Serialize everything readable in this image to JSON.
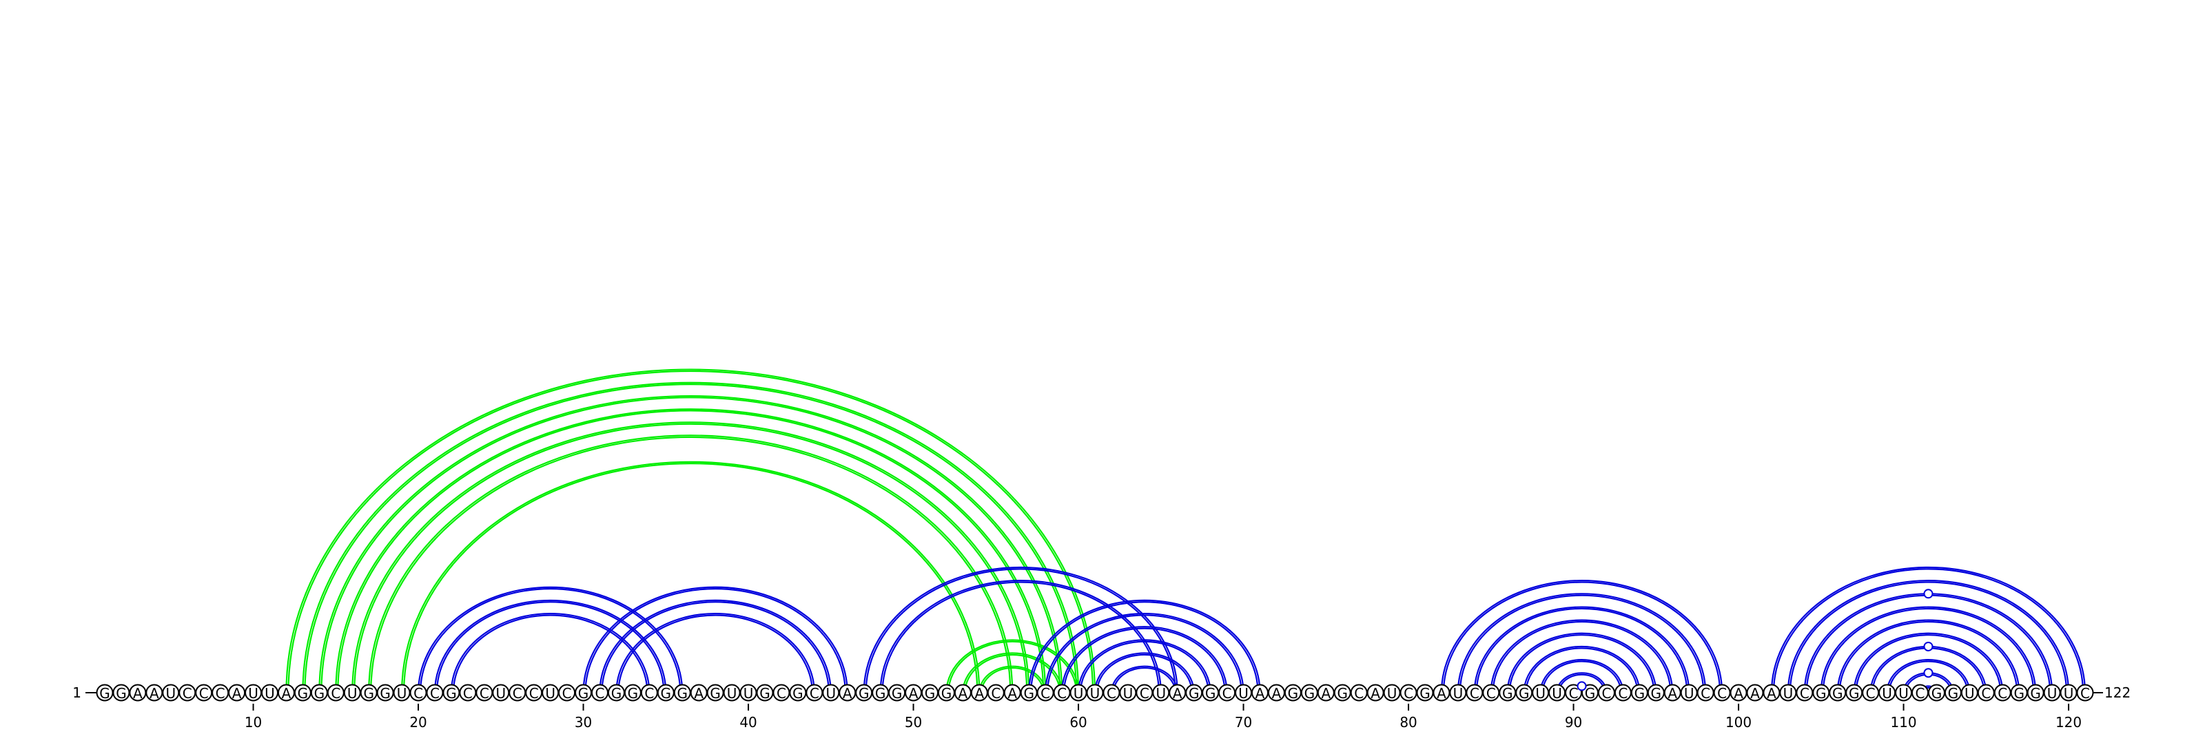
{
  "sequence": "GGAAUCCCAUUAGGCUGGUCCGCCUCCUCGCGGCGGAGUUGCGCUAGGGAGGAACAGCCUUCUCUAGGCUAAGGAGCAUCGAUCCGGUUCGCCGGAUCCAAAUCGGGCUUCGGUCCGGUUC",
  "start_label": "1",
  "end_label": "122",
  "ticks": [
    10,
    20,
    30,
    40,
    50,
    60,
    70,
    80,
    90,
    100,
    110,
    120
  ],
  "colors": {
    "green": "#00ee00",
    "blue": "#0000dd",
    "backbone": "#000000"
  },
  "pairs": [
    {
      "i": 12,
      "j": 61,
      "color": "green"
    },
    {
      "i": 13,
      "j": 60,
      "color": "green"
    },
    {
      "i": 14,
      "j": 59,
      "color": "green"
    },
    {
      "i": 15,
      "j": 58,
      "color": "green"
    },
    {
      "i": 16,
      "j": 57,
      "color": "green"
    },
    {
      "i": 17,
      "j": 56,
      "color": "green"
    },
    {
      "i": 19,
      "j": 54,
      "color": "green"
    },
    {
      "i": 52,
      "j": 60,
      "color": "green"
    },
    {
      "i": 53,
      "j": 59,
      "color": "green"
    },
    {
      "i": 54,
      "j": 58,
      "color": "green"
    },
    {
      "i": 20,
      "j": 36,
      "color": "blue"
    },
    {
      "i": 21,
      "j": 35,
      "color": "blue"
    },
    {
      "i": 22,
      "j": 34,
      "color": "blue"
    },
    {
      "i": 30,
      "j": 46,
      "color": "blue"
    },
    {
      "i": 31,
      "j": 45,
      "color": "blue"
    },
    {
      "i": 32,
      "j": 44,
      "color": "blue"
    },
    {
      "i": 47,
      "j": 66,
      "color": "blue"
    },
    {
      "i": 48,
      "j": 65,
      "color": "blue"
    },
    {
      "i": 57,
      "j": 71,
      "color": "blue"
    },
    {
      "i": 58,
      "j": 70,
      "color": "blue"
    },
    {
      "i": 59,
      "j": 69,
      "color": "blue"
    },
    {
      "i": 60,
      "j": 68,
      "color": "blue"
    },
    {
      "i": 61,
      "j": 67,
      "color": "blue"
    },
    {
      "i": 62,
      "j": 66,
      "color": "blue"
    },
    {
      "i": 82,
      "j": 99,
      "color": "blue"
    },
    {
      "i": 83,
      "j": 98,
      "color": "blue"
    },
    {
      "i": 84,
      "j": 97,
      "color": "blue"
    },
    {
      "i": 85,
      "j": 96,
      "color": "blue"
    },
    {
      "i": 86,
      "j": 95,
      "color": "blue"
    },
    {
      "i": 87,
      "j": 94,
      "color": "blue"
    },
    {
      "i": 88,
      "j": 93,
      "color": "blue"
    },
    {
      "i": 89,
      "j": 92,
      "color": "blue"
    },
    {
      "i": 90,
      "j": 91,
      "color": "blue"
    },
    {
      "i": 102,
      "j": 121,
      "color": "blue"
    },
    {
      "i": 103,
      "j": 120,
      "color": "blue"
    },
    {
      "i": 104,
      "j": 119,
      "color": "blue"
    },
    {
      "i": 105,
      "j": 118,
      "color": "blue"
    },
    {
      "i": 106,
      "j": 117,
      "color": "blue"
    },
    {
      "i": 107,
      "j": 116,
      "color": "blue"
    },
    {
      "i": 108,
      "j": 115,
      "color": "blue"
    },
    {
      "i": 109,
      "j": 114,
      "color": "blue"
    },
    {
      "i": 110,
      "j": 113,
      "color": "blue"
    },
    {
      "i": 111,
      "j": 112,
      "color": "blue"
    }
  ],
  "markers": [
    {
      "i": 90,
      "j": 91,
      "color": "blue"
    },
    {
      "i": 110,
      "j": 113,
      "color": "blue"
    },
    {
      "i": 108,
      "j": 115,
      "color": "blue"
    },
    {
      "i": 104,
      "j": 119,
      "color": "blue"
    }
  ]
}
